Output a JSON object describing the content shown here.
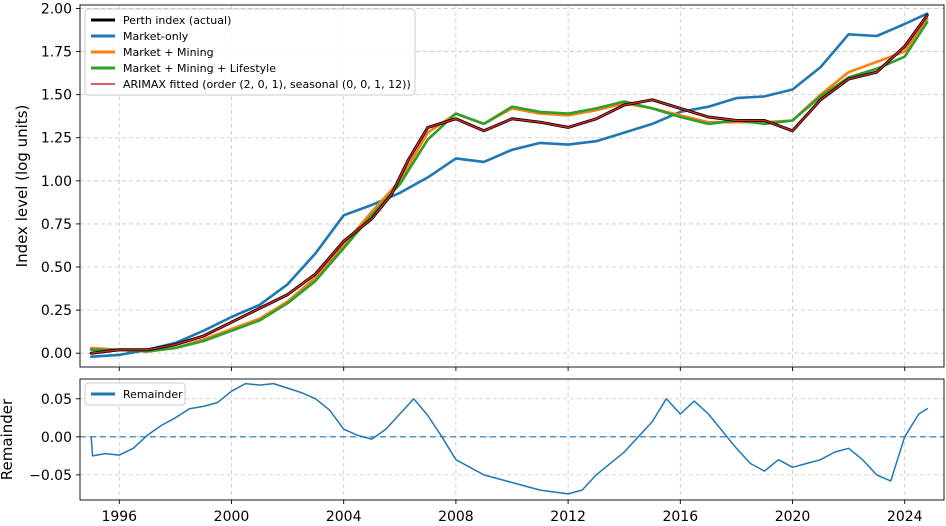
{
  "chart_data": [
    {
      "type": "line",
      "title": "",
      "xlabel": "",
      "ylabel": "Index level (log units)",
      "xlim": [
        1994.6,
        2025.4
      ],
      "ylim": [
        -0.08,
        2.02
      ],
      "grid": true,
      "legend_position": "top-left",
      "yticks": [
        0.0,
        0.25,
        0.5,
        0.75,
        1.0,
        1.25,
        1.5,
        1.75,
        2.0
      ],
      "ytick_labels": [
        "0.00",
        "0.25",
        "0.50",
        "0.75",
        "1.00",
        "1.25",
        "1.50",
        "1.75",
        "2.00"
      ],
      "xticks": [
        1996,
        2000,
        2004,
        2008,
        2012,
        2016,
        2020,
        2024
      ],
      "series": [
        {
          "name": "Perth index (actual)",
          "color": "#000000",
          "x": [
            1995.0,
            1996.0,
            1997.0,
            1998.0,
            1999.0,
            2000.0,
            2001.0,
            2002.0,
            2003.0,
            2004.0,
            2005.0,
            2005.7,
            2006.3,
            2007.0,
            2008.0,
            2009.0,
            2010.0,
            2011.0,
            2012.0,
            2013.0,
            2014.0,
            2015.0,
            2016.0,
            2017.0,
            2018.0,
            2019.0,
            2020.0,
            2021.0,
            2022.0,
            2023.0,
            2024.0,
            2024.8
          ],
          "values": [
            0.0,
            0.02,
            0.02,
            0.05,
            0.1,
            0.18,
            0.26,
            0.34,
            0.46,
            0.65,
            0.78,
            0.92,
            1.12,
            1.31,
            1.36,
            1.29,
            1.36,
            1.34,
            1.31,
            1.36,
            1.44,
            1.47,
            1.42,
            1.37,
            1.35,
            1.35,
            1.29,
            1.47,
            1.59,
            1.63,
            1.78,
            1.96
          ]
        },
        {
          "name": "Market-only",
          "color": "#1f77b4",
          "x": [
            1995.0,
            1996.0,
            1997.0,
            1998.0,
            1999.0,
            2000.0,
            2001.0,
            2002.0,
            2003.0,
            2004.0,
            2005.0,
            2006.0,
            2007.0,
            2008.0,
            2009.0,
            2010.0,
            2011.0,
            2012.0,
            2013.0,
            2014.0,
            2015.0,
            2016.0,
            2017.0,
            2018.0,
            2019.0,
            2020.0,
            2021.0,
            2022.0,
            2023.0,
            2024.0,
            2024.8
          ],
          "values": [
            -0.02,
            -0.01,
            0.02,
            0.06,
            0.13,
            0.21,
            0.28,
            0.4,
            0.58,
            0.8,
            0.86,
            0.93,
            1.02,
            1.13,
            1.11,
            1.18,
            1.22,
            1.21,
            1.23,
            1.28,
            1.33,
            1.4,
            1.43,
            1.48,
            1.49,
            1.53,
            1.66,
            1.85,
            1.84,
            1.91,
            1.97
          ]
        },
        {
          "name": "Market + Mining",
          "color": "#ff7f0e",
          "x": [
            1995.0,
            1996.0,
            1997.0,
            1998.0,
            1999.0,
            2000.0,
            2001.0,
            2002.0,
            2003.0,
            2004.0,
            2005.0,
            2006.0,
            2007.0,
            2008.0,
            2009.0,
            2010.0,
            2011.0,
            2012.0,
            2013.0,
            2014.0,
            2015.0,
            2016.0,
            2017.0,
            2018.0,
            2019.0,
            2020.0,
            2021.0,
            2022.0,
            2023.0,
            2024.0,
            2024.8
          ],
          "values": [
            0.03,
            0.02,
            0.01,
            0.03,
            0.08,
            0.14,
            0.2,
            0.3,
            0.44,
            0.63,
            0.82,
            1.0,
            1.28,
            1.39,
            1.33,
            1.42,
            1.39,
            1.38,
            1.41,
            1.45,
            1.42,
            1.38,
            1.34,
            1.34,
            1.34,
            1.35,
            1.5,
            1.63,
            1.69,
            1.75,
            1.94
          ]
        },
        {
          "name": "Market + Mining + Lifestyle",
          "color": "#2ca02c",
          "x": [
            1995.0,
            1996.0,
            1997.0,
            1998.0,
            1999.0,
            2000.0,
            2001.0,
            2002.0,
            2003.0,
            2004.0,
            2005.0,
            2006.0,
            2007.0,
            2008.0,
            2009.0,
            2010.0,
            2011.0,
            2012.0,
            2013.0,
            2014.0,
            2015.0,
            2016.0,
            2017.0,
            2018.0,
            2019.0,
            2020.0,
            2021.0,
            2022.0,
            2023.0,
            2024.0,
            2024.8
          ],
          "values": [
            0.02,
            0.02,
            0.01,
            0.03,
            0.07,
            0.13,
            0.19,
            0.29,
            0.42,
            0.61,
            0.8,
            0.98,
            1.24,
            1.39,
            1.33,
            1.43,
            1.4,
            1.39,
            1.42,
            1.46,
            1.42,
            1.37,
            1.33,
            1.35,
            1.33,
            1.35,
            1.49,
            1.6,
            1.65,
            1.72,
            1.92
          ]
        },
        {
          "name": "ARIMAX fitted (order (2, 0, 1), seasonal (0, 0, 1, 12))",
          "color": "#d62728",
          "x": [
            1995.0,
            1996.0,
            1997.0,
            1998.0,
            1999.0,
            2000.0,
            2001.0,
            2002.0,
            2003.0,
            2004.0,
            2005.0,
            2005.7,
            2006.3,
            2007.0,
            2008.0,
            2009.0,
            2010.0,
            2011.0,
            2012.0,
            2013.0,
            2014.0,
            2015.0,
            2016.0,
            2017.0,
            2018.0,
            2019.0,
            2020.0,
            2021.0,
            2022.0,
            2023.0,
            2024.0,
            2024.8
          ],
          "values": [
            0.0,
            0.02,
            0.02,
            0.05,
            0.1,
            0.18,
            0.26,
            0.34,
            0.46,
            0.65,
            0.78,
            0.92,
            1.12,
            1.31,
            1.36,
            1.29,
            1.36,
            1.34,
            1.31,
            1.36,
            1.44,
            1.47,
            1.42,
            1.37,
            1.35,
            1.35,
            1.29,
            1.47,
            1.59,
            1.63,
            1.78,
            1.96
          ]
        }
      ]
    },
    {
      "type": "line",
      "title": "",
      "xlabel": "",
      "ylabel": "Remainder",
      "xlim": [
        1994.6,
        2025.4
      ],
      "ylim": [
        -0.083,
        0.076
      ],
      "grid": true,
      "legend_position": "top-left",
      "yticks": [
        -0.05,
        0.0,
        0.05
      ],
      "ytick_labels": [
        "−0.05",
        "0.00",
        "0.05"
      ],
      "xticks": [
        1996,
        2000,
        2004,
        2008,
        2012,
        2016,
        2020,
        2024
      ],
      "xtick_labels": [
        "1996",
        "2000",
        "2004",
        "2008",
        "2012",
        "2016",
        "2020",
        "2024"
      ],
      "reference_line": {
        "y": 0.0,
        "style": "dashed",
        "color": "#1f77b4"
      },
      "series": [
        {
          "name": "Remainder",
          "color": "#1f77b4",
          "x": [
            1995.0,
            1995.05,
            1995.5,
            1996.0,
            1996.5,
            1997.0,
            1997.5,
            1998.0,
            1998.5,
            1999.0,
            1999.5,
            2000.0,
            2000.5,
            2001.0,
            2001.5,
            2002.0,
            2002.5,
            2003.0,
            2003.5,
            2004.0,
            2004.5,
            2005.0,
            2005.5,
            2006.0,
            2006.5,
            2007.0,
            2007.5,
            2008.0,
            2009.0,
            2010.0,
            2011.0,
            2012.0,
            2012.5,
            2013.0,
            2014.0,
            2015.0,
            2015.5,
            2016.0,
            2016.5,
            2017.0,
            2018.0,
            2018.5,
            2019.0,
            2019.5,
            2020.0,
            2020.5,
            2021.0,
            2021.5,
            2022.0,
            2022.5,
            2023.0,
            2023.5,
            2024.0,
            2024.5,
            2024.8
          ],
          "values": [
            0.0,
            -0.025,
            -0.022,
            -0.024,
            -0.015,
            0.002,
            0.015,
            0.025,
            0.037,
            0.04,
            0.045,
            0.06,
            0.07,
            0.068,
            0.07,
            0.064,
            0.058,
            0.05,
            0.035,
            0.01,
            0.002,
            -0.003,
            0.01,
            0.03,
            0.05,
            0.028,
            0.0,
            -0.03,
            -0.05,
            -0.06,
            -0.07,
            -0.075,
            -0.07,
            -0.05,
            -0.02,
            0.02,
            0.05,
            0.03,
            0.047,
            0.03,
            -0.015,
            -0.035,
            -0.045,
            -0.03,
            -0.04,
            -0.035,
            -0.03,
            -0.02,
            -0.015,
            -0.03,
            -0.05,
            -0.058,
            0.0,
            0.03,
            0.037
          ]
        }
      ]
    }
  ]
}
